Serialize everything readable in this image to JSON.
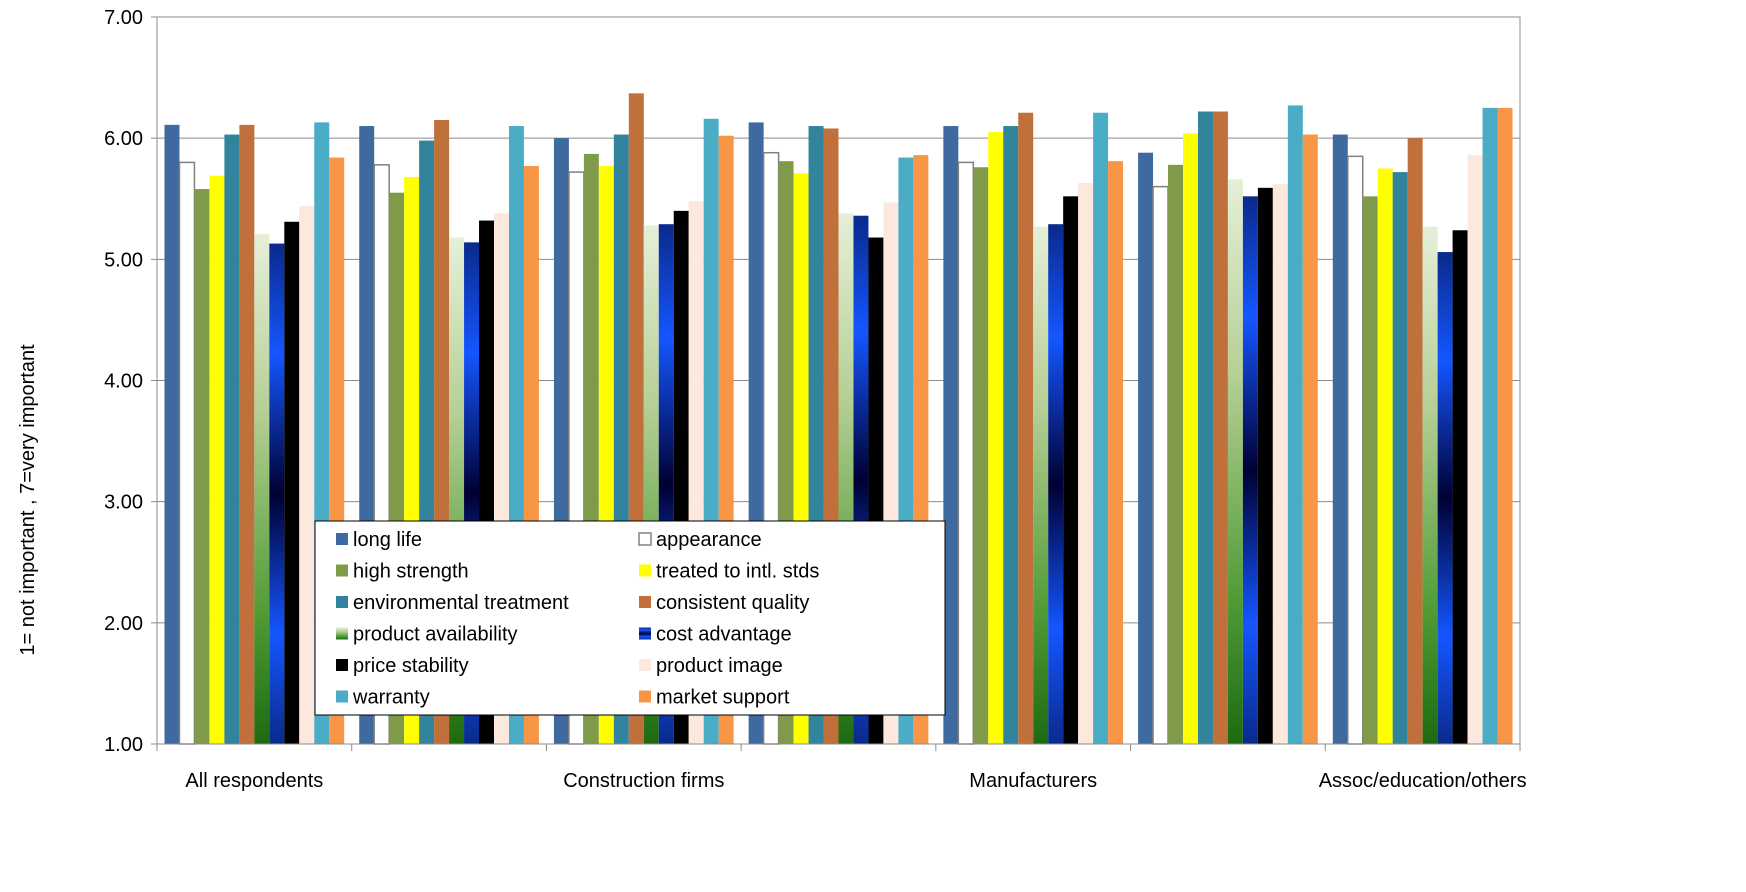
{
  "chart_data": {
    "type": "bar",
    "title": "",
    "xlabel": "",
    "ylabel": "1= not important , 7=very important",
    "ylim": [
      1,
      7
    ],
    "yticks": [
      "1.00",
      "2.00",
      "3.00",
      "4.00",
      "5.00",
      "6.00",
      "7.00"
    ],
    "grid": true,
    "legend_position": "bottom-center inside plot",
    "categories": [
      "All respondents",
      "",
      "Construction firms",
      "",
      "Manufacturers",
      "",
      "Assoc/education/others"
    ],
    "series": [
      {
        "name": "long life",
        "color": "#3f6aa0",
        "fill": "solid",
        "values": [
          6.11,
          6.1,
          6.0,
          6.13,
          6.1,
          5.88,
          6.03
        ]
      },
      {
        "name": "appearance",
        "color": "#ffffff",
        "stroke": "#808080",
        "fill": "solid",
        "values": [
          5.8,
          5.78,
          5.72,
          5.88,
          5.8,
          5.6,
          5.85
        ]
      },
      {
        "name": "high strength",
        "color": "#7f9a48",
        "fill": "solid",
        "values": [
          5.58,
          5.55,
          5.87,
          5.81,
          5.76,
          5.78,
          5.52
        ]
      },
      {
        "name": "treated to intl. stds",
        "color": "#ffff00",
        "fill": "solid",
        "values": [
          5.69,
          5.68,
          5.77,
          5.71,
          6.05,
          6.04,
          5.75
        ]
      },
      {
        "name": "environmental treatment",
        "color": "#31849b",
        "fill": "solid",
        "values": [
          6.03,
          5.98,
          6.03,
          6.1,
          6.1,
          6.22,
          5.72
        ]
      },
      {
        "name": "consistent quality",
        "color": "#c0703a",
        "fill": "solid",
        "values": [
          6.11,
          6.15,
          6.37,
          6.08,
          6.21,
          6.22,
          6.0
        ]
      },
      {
        "name": "product availability",
        "color": "#2e7d1e",
        "fill": "gradient-green",
        "values": [
          5.21,
          5.18,
          5.28,
          5.38,
          5.27,
          5.66,
          5.27
        ]
      },
      {
        "name": "cost advantage",
        "color": "#0030ff",
        "fill": "gradient-blue",
        "values": [
          5.13,
          5.14,
          5.29,
          5.36,
          5.29,
          5.52,
          5.06
        ]
      },
      {
        "name": "price stability",
        "color": "#000000",
        "fill": "solid",
        "values": [
          5.31,
          5.32,
          5.4,
          5.18,
          5.52,
          5.59,
          5.24
        ]
      },
      {
        "name": "product image",
        "color": "#fce8dc",
        "fill": "solid",
        "values": [
          5.44,
          5.38,
          5.48,
          5.47,
          5.63,
          5.62,
          5.86
        ]
      },
      {
        "name": "warranty",
        "color": "#4bacc6",
        "fill": "solid",
        "values": [
          6.13,
          6.1,
          6.16,
          5.84,
          6.21,
          6.27,
          6.25
        ]
      },
      {
        "name": "market support",
        "color": "#f79646",
        "fill": "solid",
        "values": [
          5.84,
          5.77,
          6.02,
          5.86,
          5.81,
          6.03,
          6.25
        ]
      }
    ]
  }
}
